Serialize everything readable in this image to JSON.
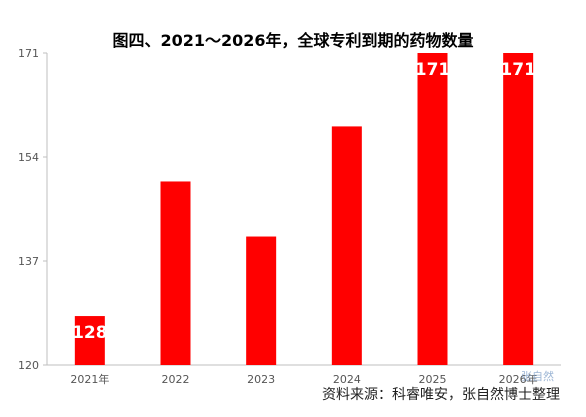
{
  "chart_data": {
    "type": "bar",
    "title": "图四、2021～2026年，全球专利到期的药物数量",
    "categories": [
      "2021年",
      "2022",
      "2023",
      "2024",
      "2025",
      "2026年"
    ],
    "values": [
      128,
      150,
      141,
      159,
      171,
      171
    ],
    "data_labels": [
      "128",
      "",
      "",
      "",
      "171",
      "171"
    ],
    "y_ticks": [
      120,
      137,
      154,
      171
    ],
    "ylim": [
      120,
      171
    ],
    "xlabel": "",
    "ylabel": "",
    "grid": false,
    "bar_color": "#ff0000"
  },
  "source": "资料来源：科睿唯安，张自然博士整理",
  "watermark": "张自然"
}
